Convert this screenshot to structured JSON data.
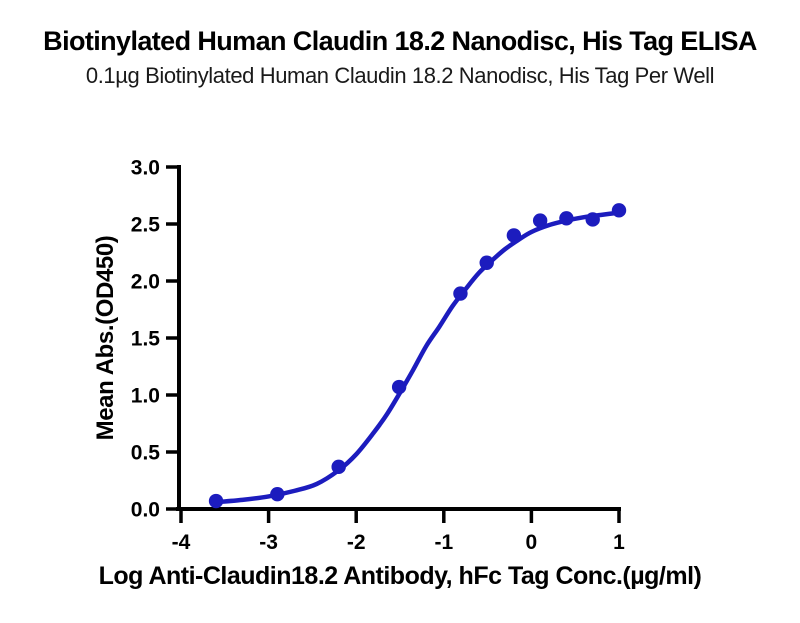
{
  "chart_data": {
    "type": "scatter",
    "title": "Biotinylated Human Claudin 18.2 Nanodisc, His Tag ELISA",
    "subtitle": "0.1µg Biotinylated Human Claudin 18.2 Nanodisc, His Tag Per Well",
    "xlabel": "Log Anti-Claudin18.2 Antibody, hFc Tag Conc.(µg/ml)",
    "ylabel": "Mean Abs.(OD450)",
    "xlim": [
      -4,
      1
    ],
    "ylim": [
      0,
      3
    ],
    "x_tick_values": [
      -4,
      -3,
      -2,
      -1,
      0,
      1
    ],
    "x_tick_labels": [
      "-4",
      "-3",
      "-2",
      "-1",
      "0",
      "1"
    ],
    "y_tick_values": [
      0.0,
      0.5,
      1.0,
      1.5,
      2.0,
      2.5,
      3.0
    ],
    "y_tick_labels": [
      "0.0",
      "0.5",
      "1.0",
      "1.5",
      "2.0",
      "2.5",
      "3.0"
    ],
    "grid": false,
    "legend": "none",
    "axis_color": "#000000",
    "series": [
      {
        "name": "Anti-Claudin18.2 Antibody, hFc Tag",
        "color": "#1c1cbe",
        "marker": "circle",
        "points": [
          [
            -3.6,
            0.07
          ],
          [
            -2.9,
            0.13
          ],
          [
            -2.2,
            0.37
          ],
          [
            -1.51,
            1.07
          ],
          [
            -0.81,
            1.89
          ],
          [
            -0.51,
            2.16
          ],
          [
            -0.2,
            2.4
          ],
          [
            0.1,
            2.53
          ],
          [
            0.4,
            2.55
          ],
          [
            0.7,
            2.54
          ],
          [
            1.0,
            2.62
          ]
        ],
        "fit_curve": [
          [
            -3.6,
            0.06
          ],
          [
            -3.3,
            0.08
          ],
          [
            -3.0,
            0.11
          ],
          [
            -2.7,
            0.16
          ],
          [
            -2.45,
            0.22
          ],
          [
            -2.2,
            0.34
          ],
          [
            -2.0,
            0.48
          ],
          [
            -1.8,
            0.67
          ],
          [
            -1.65,
            0.83
          ],
          [
            -1.5,
            1.02
          ],
          [
            -1.35,
            1.22
          ],
          [
            -1.2,
            1.43
          ],
          [
            -1.05,
            1.6
          ],
          [
            -0.9,
            1.78
          ],
          [
            -0.75,
            1.93
          ],
          [
            -0.6,
            2.07
          ],
          [
            -0.45,
            2.18
          ],
          [
            -0.3,
            2.28
          ],
          [
            -0.15,
            2.36
          ],
          [
            0.0,
            2.43
          ],
          [
            0.2,
            2.49
          ],
          [
            0.4,
            2.53
          ],
          [
            0.6,
            2.56
          ],
          [
            0.8,
            2.58
          ],
          [
            1.0,
            2.6
          ]
        ]
      }
    ]
  }
}
